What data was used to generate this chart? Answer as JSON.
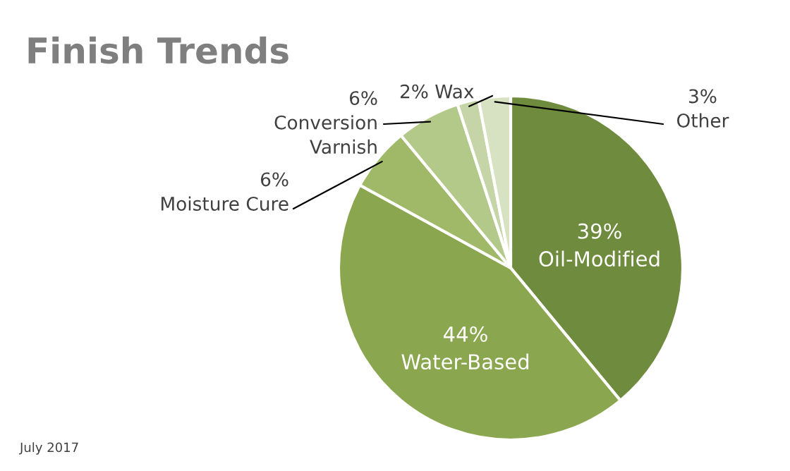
{
  "chart_data": {
    "type": "pie",
    "title": "Finish Trends",
    "categories": [
      "Oil-Modified",
      "Water-Based",
      "Moisture Cure",
      "Conversion Varnish",
      "Wax",
      "Other"
    ],
    "values": [
      39,
      44,
      6,
      6,
      2,
      3
    ],
    "colors": [
      "#6f8b3d",
      "#8aa64e",
      "#9fb968",
      "#b3c98a",
      "#c5d5a7",
      "#d6e2c2"
    ],
    "value_labels": [
      "39%",
      "44%",
      "6%",
      "6%",
      "2%",
      "3%"
    ],
    "annotations": [
      "July 2017"
    ]
  }
}
